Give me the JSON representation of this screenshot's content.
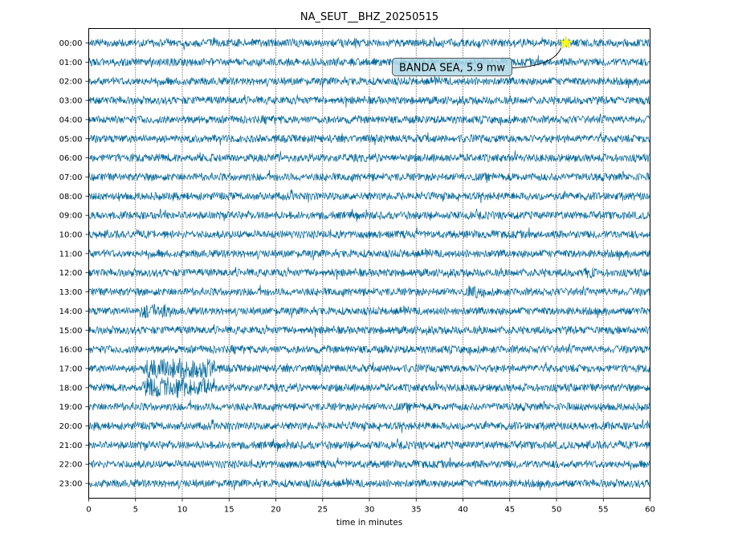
{
  "chart_data": {
    "type": "line",
    "title": "NA_SEUT__BHZ_20250515",
    "xlabel": "time in minutes",
    "ylabel": "",
    "xlim": [
      0,
      60
    ],
    "x_ticks": [
      0,
      5,
      10,
      15,
      20,
      25,
      30,
      35,
      40,
      45,
      50,
      55,
      60
    ],
    "row_labels": [
      "00:00",
      "01:00",
      "02:00",
      "03:00",
      "04:00",
      "05:00",
      "06:00",
      "07:00",
      "08:00",
      "09:00",
      "10:00",
      "11:00",
      "12:00",
      "13:00",
      "14:00",
      "15:00",
      "16:00",
      "17:00",
      "18:00",
      "19:00",
      "20:00",
      "21:00",
      "22:00",
      "23:00"
    ],
    "grid": "vertical dotted",
    "trace_color": "#006699",
    "event": {
      "label": "BANDA SEA, 5.9 mw",
      "row": "00:00",
      "minute": 51,
      "marker": "star",
      "marker_color": "#ffff00",
      "box_color": "#add8e6"
    },
    "bursts": [
      {
        "row": "17:00",
        "start_minute": 5.8,
        "end_minute": 13.5,
        "amplitude": "high"
      },
      {
        "row": "18:00",
        "start_minute": 5.8,
        "end_minute": 13.5,
        "amplitude": "high"
      },
      {
        "row": "13:00",
        "start_minute": 40.5,
        "end_minute": 42,
        "amplitude": "medium"
      },
      {
        "row": "12:00",
        "start_minute": 53,
        "end_minute": 54,
        "amplitude": "medium"
      },
      {
        "row": "14:00",
        "start_minute": 5.5,
        "end_minute": 9,
        "amplitude": "medium"
      }
    ]
  }
}
